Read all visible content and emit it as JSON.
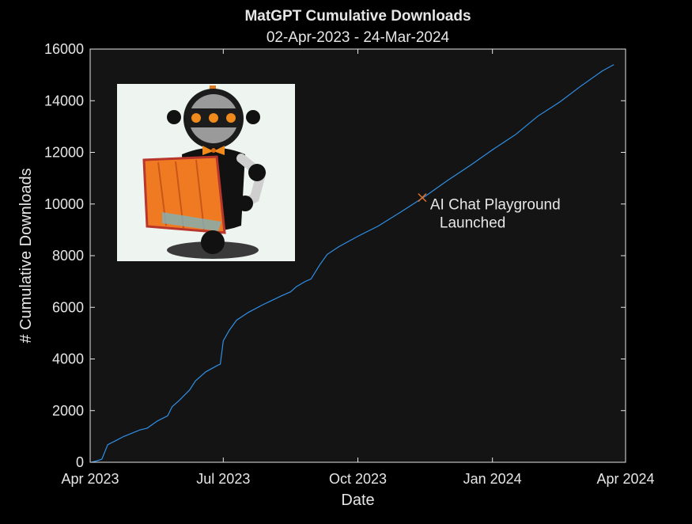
{
  "chart_data": {
    "type": "line",
    "title": "MatGPT Cumulative Downloads",
    "subtitle": "02-Apr-2023 - 24-Mar-2024",
    "xlabel": "Date",
    "ylabel": "# Cumulative Downloads",
    "xlim": [
      "2023-04-01",
      "2024-04-01"
    ],
    "ylim": [
      0,
      16000
    ],
    "xticks": [
      {
        "date": "2023-04-01",
        "label": "Apr 2023"
      },
      {
        "date": "2023-07-01",
        "label": "Jul 2023"
      },
      {
        "date": "2023-10-01",
        "label": "Oct 2023"
      },
      {
        "date": "2024-01-01",
        "label": "Jan 2024"
      },
      {
        "date": "2024-04-01",
        "label": "Apr 2024"
      }
    ],
    "yticks": [
      0,
      2000,
      4000,
      6000,
      8000,
      10000,
      12000,
      14000,
      16000
    ],
    "grid": false,
    "colors": {
      "background": "#000000",
      "axes": "#141414",
      "line": "#2f8fe6",
      "marker": "#e2732a",
      "text": "#e6e6e6"
    },
    "series": [
      {
        "color": "#2f8fe6",
        "points": [
          [
            "2023-04-02",
            0
          ],
          [
            "2023-04-06",
            60
          ],
          [
            "2023-04-09",
            120
          ],
          [
            "2023-04-13",
            680
          ],
          [
            "2023-04-18",
            820
          ],
          [
            "2023-04-24",
            1000
          ],
          [
            "2023-05-05",
            1250
          ],
          [
            "2023-05-10",
            1320
          ],
          [
            "2023-05-17",
            1600
          ],
          [
            "2023-05-24",
            1800
          ],
          [
            "2023-05-27",
            2150
          ],
          [
            "2023-06-01",
            2400
          ],
          [
            "2023-06-08",
            2800
          ],
          [
            "2023-06-12",
            3150
          ],
          [
            "2023-06-19",
            3500
          ],
          [
            "2023-06-27",
            3750
          ],
          [
            "2023-06-29",
            3800
          ],
          [
            "2023-07-01",
            4700
          ],
          [
            "2023-07-05",
            5100
          ],
          [
            "2023-07-10",
            5500
          ],
          [
            "2023-07-18",
            5800
          ],
          [
            "2023-07-28",
            6100
          ],
          [
            "2023-08-10",
            6450
          ],
          [
            "2023-08-16",
            6600
          ],
          [
            "2023-08-20",
            6800
          ],
          [
            "2023-08-26",
            7000
          ],
          [
            "2023-08-30",
            7100
          ],
          [
            "2023-09-05",
            7650
          ],
          [
            "2023-09-10",
            8050
          ],
          [
            "2023-09-18",
            8350
          ],
          [
            "2023-10-01",
            8750
          ],
          [
            "2023-10-15",
            9150
          ],
          [
            "2023-11-01",
            9750
          ],
          [
            "2023-11-16",
            10300
          ],
          [
            "2023-12-01",
            10900
          ],
          [
            "2023-12-17",
            11500
          ],
          [
            "2024-01-01",
            12100
          ],
          [
            "2024-01-17",
            12700
          ],
          [
            "2024-02-01",
            13400
          ],
          [
            "2024-02-16",
            13950
          ],
          [
            "2024-03-01",
            14550
          ],
          [
            "2024-03-16",
            15150
          ],
          [
            "2024-03-24",
            15400
          ]
        ]
      }
    ],
    "annotation": {
      "date": "2023-11-14",
      "value": 10250,
      "marker": "x",
      "text_line1": "AI Chat Playground",
      "text_line2": "Launched"
    },
    "inset_image": "matgpt-robot-logo"
  }
}
